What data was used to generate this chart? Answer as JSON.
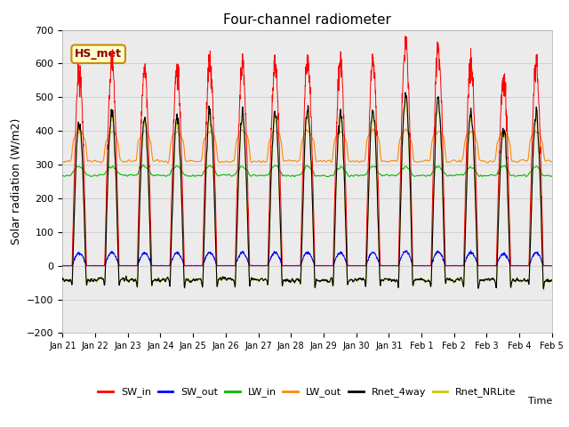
{
  "title": "Four-channel radiometer",
  "xlabel": "Time",
  "ylabel": "Solar radiation (W/m2)",
  "ylim": [
    -200,
    700
  ],
  "yticks": [
    -200,
    -100,
    0,
    100,
    200,
    300,
    400,
    500,
    600,
    700
  ],
  "legend_labels": [
    "SW_in",
    "SW_out",
    "LW_in",
    "LW_out",
    "Rnet_4way",
    "Rnet_NRLite"
  ],
  "legend_colors": [
    "#ff0000",
    "#0000ff",
    "#00bb00",
    "#ff8800",
    "#000000",
    "#cccc00"
  ],
  "annotation_text": "HS_met",
  "annotation_bg": "#ffffcc",
  "annotation_border": "#cc8800",
  "annotation_text_color": "#880000",
  "plot_bg": "#ebebeb",
  "n_days": 15,
  "figsize": [
    6.4,
    4.8
  ],
  "dpi": 100
}
